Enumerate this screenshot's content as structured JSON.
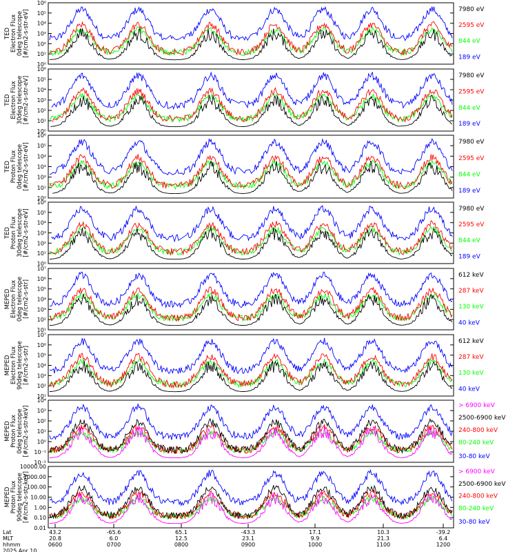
{
  "colors": {
    "blue": "#0000ff",
    "red": "#ff0000",
    "green": "#00ff00",
    "black": "#000000",
    "magenta": "#ff00ff"
  },
  "chart_data": [
    {
      "type": "line",
      "title": "",
      "log_scale": true,
      "grid": false,
      "ylabel": [
        "TED",
        "Electron Flux",
        "0deg telescope",
        "[#/cm2-s-str-eV]"
      ],
      "yticks": [
        "10⁰",
        "10¹",
        "10²",
        "10³",
        "10⁴",
        "10⁵",
        "10⁶"
      ],
      "ylim": [
        1,
        1000000
      ],
      "series": [
        {
          "name": "7980 eV",
          "color": "#000000"
        },
        {
          "name": "2595 eV",
          "color": "#ff0000"
        },
        {
          "name": "844 eV",
          "color": "#00ff00"
        },
        {
          "name": "189 eV",
          "color": "#0000ff"
        }
      ]
    },
    {
      "type": "line",
      "title": "",
      "log_scale": true,
      "grid": false,
      "ylabel": [
        "TED",
        "Electron Flux",
        "30deg telescope",
        "[#/cm2-s-str-eV]"
      ],
      "yticks": [
        "10⁰",
        "10¹",
        "10²",
        "10³",
        "10⁴",
        "10⁵",
        "10⁶"
      ],
      "ylim": [
        1,
        1000000
      ],
      "series": [
        {
          "name": "7980 eV",
          "color": "#000000"
        },
        {
          "name": "2595 eV",
          "color": "#ff0000"
        },
        {
          "name": "844 eV",
          "color": "#00ff00"
        },
        {
          "name": "189 eV",
          "color": "#0000ff"
        }
      ]
    },
    {
      "type": "line",
      "title": "",
      "log_scale": true,
      "grid": false,
      "ylabel": [
        "TED",
        "Proton Flux",
        "0deg telescope",
        "[#/cm2-s-str-eV]"
      ],
      "yticks": [
        "10⁰",
        "10¹",
        "10²",
        "10³",
        "10⁴",
        "10⁵",
        "10⁶"
      ],
      "ylim": [
        1,
        1000000
      ],
      "series": [
        {
          "name": "7980 eV",
          "color": "#000000"
        },
        {
          "name": "2595 eV",
          "color": "#ff0000"
        },
        {
          "name": "844 eV",
          "color": "#00ff00"
        },
        {
          "name": "189 eV",
          "color": "#0000ff"
        }
      ]
    },
    {
      "type": "line",
      "title": "",
      "log_scale": true,
      "grid": false,
      "ylabel": [
        "TED",
        "Proton Flux",
        "30deg telescope",
        "[#/cm2-s-str-eV]"
      ],
      "yticks": [
        "10⁰",
        "10¹",
        "10²",
        "10³",
        "10⁴",
        "10⁵",
        "10⁶"
      ],
      "ylim": [
        1,
        1000000
      ],
      "series": [
        {
          "name": "7980 eV",
          "color": "#000000"
        },
        {
          "name": "2595 eV",
          "color": "#ff0000"
        },
        {
          "name": "844 eV",
          "color": "#00ff00"
        },
        {
          "name": "189 eV",
          "color": "#0000ff"
        }
      ]
    },
    {
      "type": "line",
      "title": "",
      "log_scale": true,
      "grid": false,
      "ylabel": [
        "MEPED",
        "Electron Flux",
        "0deg telescope",
        "[#/cm2-s-str]"
      ],
      "yticks": [
        "10¹",
        "10²",
        "10³",
        "10⁴",
        "10⁵",
        "10⁶",
        "10⁷"
      ],
      "ylim": [
        10,
        10000000
      ],
      "series": [
        {
          "name": "612 keV",
          "color": "#000000"
        },
        {
          "name": "287 keV",
          "color": "#ff0000"
        },
        {
          "name": "130 keV",
          "color": "#00ff00"
        },
        {
          "name": "40 keV",
          "color": "#0000ff"
        }
      ]
    },
    {
      "type": "line",
      "title": "",
      "log_scale": true,
      "grid": false,
      "ylabel": [
        "MEPED",
        "Electron Flux",
        "90deg telescope",
        "[#/cm2-s-str]"
      ],
      "yticks": [
        "10¹",
        "10²",
        "10³",
        "10⁴",
        "10⁵",
        "10⁶",
        "10⁷"
      ],
      "ylim": [
        10,
        10000000
      ],
      "series": [
        {
          "name": "612 keV",
          "color": "#000000"
        },
        {
          "name": "287 keV",
          "color": "#ff0000"
        },
        {
          "name": "130 keV",
          "color": "#00ff00"
        },
        {
          "name": "40 keV",
          "color": "#0000ff"
        }
      ]
    },
    {
      "type": "line",
      "title": "",
      "log_scale": true,
      "grid": false,
      "ylabel": [
        "MEPED",
        "Proton Flux",
        "0deg telescope",
        "[#/cm2-s-str-keV]"
      ],
      "yticks": [
        "10⁻²",
        "10⁻¹",
        "10⁰",
        "10¹",
        "10²",
        "10³",
        "10⁴"
      ],
      "ylim": [
        0.01,
        10000
      ],
      "series": [
        {
          "name": "> 6900 keV",
          "color": "#ff00ff"
        },
        {
          "name": "2500-6900 keV",
          "color": "#000000"
        },
        {
          "name": "240-800 keV",
          "color": "#ff0000"
        },
        {
          "name": "80-240 keV",
          "color": "#00ff00"
        },
        {
          "name": "30-80 keV",
          "color": "#0000ff"
        }
      ]
    },
    {
      "type": "line",
      "title": "",
      "log_scale": true,
      "grid": false,
      "ylabel": [
        "MEPED",
        "Proton Flux",
        "90deg telescope",
        "[#/cm2-s-str-keV]"
      ],
      "yticks": [
        "0.01",
        "0.10",
        "1.00",
        "10.00",
        "100.00",
        "1000.00",
        "10000.00"
      ],
      "ylim": [
        0.01,
        10000
      ],
      "series": [
        {
          "name": "> 6900 keV",
          "color": "#ff00ff"
        },
        {
          "name": "2500-6900 keV",
          "color": "#000000"
        },
        {
          "name": "240-800 keV",
          "color": "#ff0000"
        },
        {
          "name": "80-240 keV",
          "color": "#00ff00"
        },
        {
          "name": "30-80 keV",
          "color": "#0000ff"
        }
      ]
    }
  ],
  "x_axis": {
    "row_labels": [
      "Lat",
      "MLT",
      "hhmm",
      "2025 Apr 10"
    ],
    "ticks": [
      {
        "lat": "43.2",
        "mlt": "20.8",
        "hhmm": "0600"
      },
      {
        "lat": "-65.6",
        "mlt": "6.0",
        "hhmm": "0700"
      },
      {
        "lat": "65.1",
        "mlt": "12.5",
        "hhmm": "0800"
      },
      {
        "lat": "-43.3",
        "mlt": "23.1",
        "hhmm": "0900"
      },
      {
        "lat": "17.1",
        "mlt": "9.9",
        "hhmm": "1000"
      },
      {
        "lat": "10.3",
        "mlt": "21.3",
        "hhmm": "1100"
      },
      {
        "lat": "-39.2",
        "mlt": "6.4",
        "hhmm": "1200"
      }
    ]
  }
}
